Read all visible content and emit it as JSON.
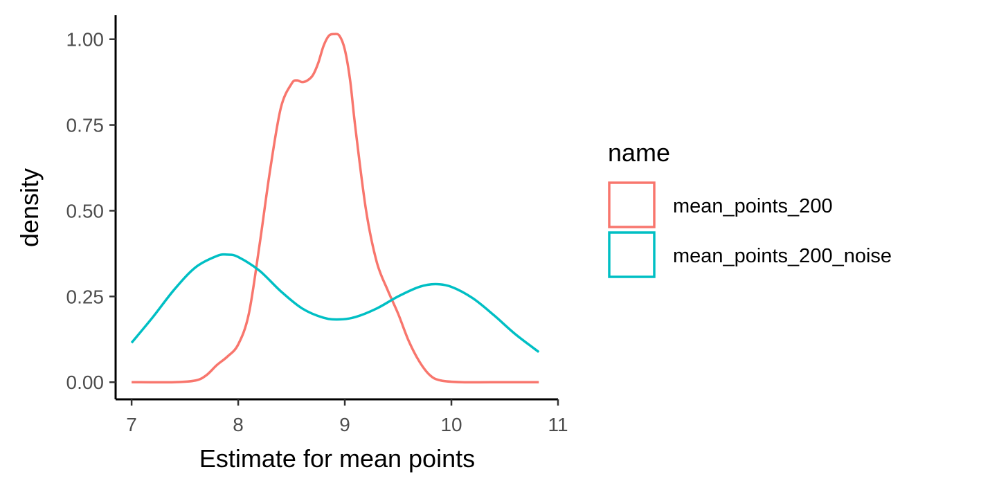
{
  "chart_data": {
    "type": "line",
    "subtype": "density",
    "title": "",
    "xlabel": "Estimate for mean points",
    "ylabel": "density",
    "xlim": [
      6.85,
      11.0
    ],
    "ylim": [
      -0.05,
      1.07
    ],
    "x_ticks": [
      7,
      8,
      9,
      10,
      11
    ],
    "y_ticks": [
      0,
      0.25,
      0.5,
      0.75,
      1.0
    ],
    "x_tick_labels": [
      "7",
      "8",
      "9",
      "10",
      "11"
    ],
    "y_tick_labels": [
      "0.00",
      "0.25",
      "0.50",
      "0.75",
      "1.00"
    ],
    "grid": false,
    "legend": {
      "title": "name",
      "position": "right"
    },
    "series": [
      {
        "name": "mean_points_200",
        "color": "#F8766D",
        "x": [
          7.0,
          7.4,
          7.6,
          7.7,
          7.8,
          7.9,
          8.0,
          8.1,
          8.2,
          8.3,
          8.4,
          8.5,
          8.55,
          8.6,
          8.65,
          8.7,
          8.75,
          8.8,
          8.85,
          8.9,
          8.95,
          9.0,
          9.05,
          9.1,
          9.2,
          9.3,
          9.4,
          9.5,
          9.6,
          9.7,
          9.8,
          9.9,
          10.1,
          10.5,
          10.82
        ],
        "y": [
          0.0,
          0.0,
          0.005,
          0.02,
          0.05,
          0.075,
          0.11,
          0.2,
          0.4,
          0.62,
          0.8,
          0.87,
          0.88,
          0.875,
          0.88,
          0.895,
          0.93,
          0.98,
          1.01,
          1.015,
          1.01,
          0.97,
          0.88,
          0.74,
          0.5,
          0.35,
          0.27,
          0.2,
          0.12,
          0.06,
          0.02,
          0.005,
          0.0,
          0.0,
          0.0
        ]
      },
      {
        "name": "mean_points_200_noise",
        "color": "#00BFC4",
        "x": [
          7.0,
          7.2,
          7.4,
          7.6,
          7.8,
          7.9,
          8.0,
          8.2,
          8.4,
          8.6,
          8.8,
          8.95,
          9.1,
          9.3,
          9.5,
          9.7,
          9.85,
          10.0,
          10.2,
          10.4,
          10.6,
          10.82
        ],
        "y": [
          0.115,
          0.19,
          0.27,
          0.335,
          0.368,
          0.372,
          0.365,
          0.325,
          0.265,
          0.215,
          0.188,
          0.183,
          0.19,
          0.215,
          0.25,
          0.278,
          0.286,
          0.278,
          0.245,
          0.195,
          0.14,
          0.088
        ]
      }
    ]
  }
}
